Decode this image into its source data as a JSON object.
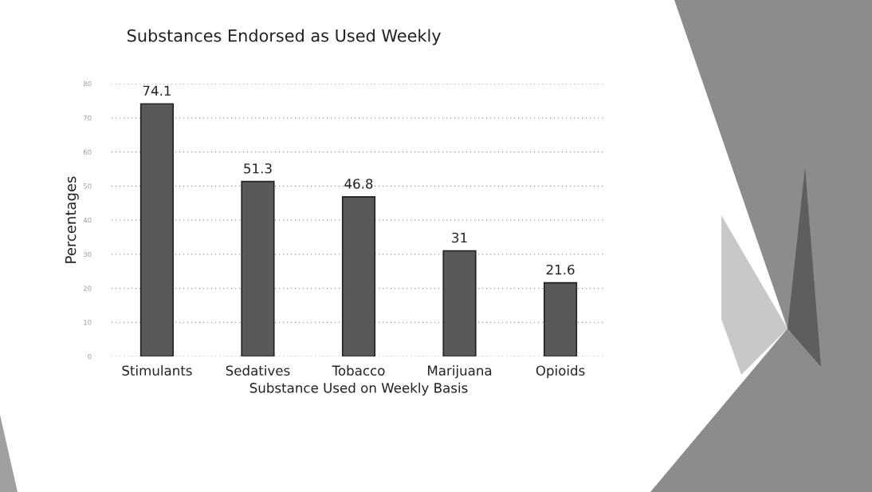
{
  "chart_data": {
    "type": "bar",
    "title": "Substances Endorsed as Used Weekly",
    "xlabel": "Substance Used on Weekly Basis",
    "ylabel": "Percentages",
    "categories": [
      "Stimulants",
      "Sedatives",
      "Tobacco",
      "Marijuana",
      "Opioids"
    ],
    "values": [
      74.1,
      51.3,
      46.8,
      31,
      21.6
    ],
    "color": "#595959",
    "ylim": [
      0,
      80
    ],
    "yticks": [
      0,
      10,
      20,
      30,
      40,
      50,
      60,
      70,
      80
    ],
    "grid": "y",
    "data_labels": true
  }
}
